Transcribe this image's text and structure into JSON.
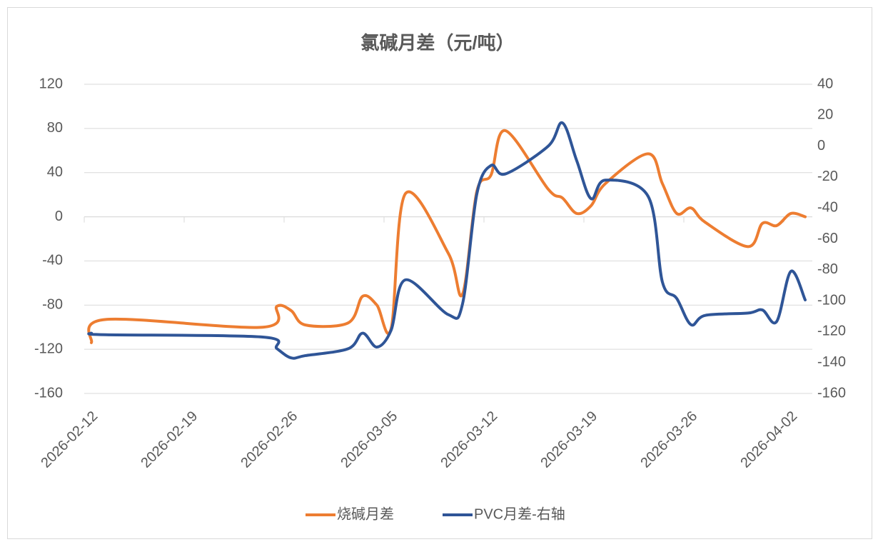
{
  "chart_data": {
    "type": "line",
    "title": "氯碱月差（元/吨）",
    "x": [
      "2026-02-12",
      "2026-02-13",
      "2026-02-24",
      "2026-02-25",
      "2026-02-26",
      "2026-02-27",
      "2026-03-02",
      "2026-03-03",
      "2026-03-04",
      "2026-03-05",
      "2026-03-06",
      "2026-03-09",
      "2026-03-10",
      "2026-03-11",
      "2026-03-12",
      "2026-03-13",
      "2026-03-16",
      "2026-03-17",
      "2026-03-18",
      "2026-03-19",
      "2026-03-20",
      "2026-03-23",
      "2026-03-24",
      "2026-03-25",
      "2026-03-26",
      "2026-03-27",
      "2026-03-30",
      "2026-03-31",
      "2026-04-01",
      "2026-04-02",
      "2026-04-03"
    ],
    "series": [
      {
        "name": "烧碱月差",
        "color": "#ed7d31",
        "axis": "y",
        "values": [
          -114,
          -93,
          -100,
          -81,
          -85,
          -98,
          -96,
          -72,
          -80,
          -101,
          21,
          -33,
          -70,
          23,
          38,
          78,
          25,
          17,
          3,
          10,
          30,
          57,
          30,
          3,
          8,
          -5,
          -27,
          -6,
          -8,
          3,
          0
        ]
      },
      {
        "name": "PVC月差-右轴",
        "color": "#2f5597",
        "axis": "y2",
        "values": [
          -121,
          -122,
          -123.5,
          -131,
          -137,
          -135.5,
          -131,
          -121,
          -130,
          -119,
          -86.5,
          -109,
          -102,
          -31,
          -12.5,
          -18,
          0,
          15,
          -9.5,
          -34,
          -22,
          -32.5,
          -88,
          -98.5,
          -115.5,
          -109.5,
          -108,
          -106,
          -113.5,
          -81,
          -99.5
        ]
      }
    ],
    "xlim": [
      "2026-02-12",
      "2026-04-04"
    ],
    "xticks": [
      "2026-02-12",
      "2026-02-19",
      "2026-02-26",
      "2026-03-05",
      "2026-03-12",
      "2026-03-19",
      "2026-03-26",
      "2026-04-02"
    ],
    "ylim": [
      -160,
      120
    ],
    "yticks": [
      -160,
      -120,
      -80,
      -40,
      0,
      40,
      80,
      120
    ],
    "y2lim": [
      -160,
      40
    ],
    "y2ticks": [
      -160,
      -140,
      -120,
      -100,
      -80,
      -60,
      -40,
      -20,
      0,
      20,
      40
    ],
    "grid": true,
    "legend": "bottom"
  }
}
